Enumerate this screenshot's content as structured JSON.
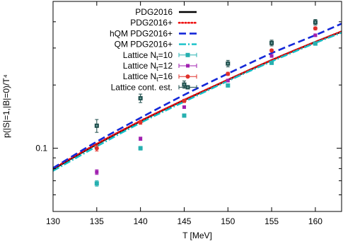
{
  "chart_data": {
    "type": "line",
    "xlabel": "T [MeV]",
    "ylabel": "p(|S|=1,|B|=0)/T⁴",
    "xlim": [
      130,
      163
    ],
    "ylim": [
      0.05,
      0.5
    ],
    "yscale": "log",
    "xticks": [
      "130",
      "135",
      "140",
      "145",
      "150",
      "155",
      "160"
    ],
    "yticks": [
      "0.1"
    ],
    "grid": false,
    "legend_position": "top-right",
    "x": [
      130,
      135,
      140,
      145,
      150,
      155,
      160,
      163
    ],
    "series": [
      {
        "name": "PDG2016",
        "color": "#000000",
        "dash": "",
        "width": 2.6,
        "values": [
          0.0795,
          0.1045,
          0.1345,
          0.1695,
          0.2115,
          0.2625,
          0.3205,
          0.359
        ]
      },
      {
        "name": "PDG2016+",
        "color": "#ee1111",
        "dash": "1.4 3",
        "width": 2.6,
        "values": [
          0.08,
          0.105,
          0.135,
          0.17,
          0.212,
          0.263,
          0.321,
          0.36
        ]
      },
      {
        "name": "hQM PDG2016+",
        "color": "#1428d8",
        "dash": "10 5",
        "width": 2.6,
        "values": [
          0.0805,
          0.1075,
          0.1395,
          0.1795,
          0.2265,
          0.2835,
          0.3455,
          0.392
        ]
      },
      {
        "name": "QM PDG2016+",
        "color": "#14c0c8",
        "dash": "10 3 2 3",
        "width": 2.4,
        "values": [
          0.078,
          0.102,
          0.132,
          0.1665,
          0.209,
          0.259,
          0.317,
          0.355
        ]
      }
    ],
    "points": [
      {
        "name": "Lattice N",
        "sub": "t",
        "suffix": "=10",
        "color": "#26b0b0",
        "marker": "square",
        "x": [
          135,
          140,
          145,
          150,
          155,
          160
        ],
        "y": [
          0.068,
          0.1,
          0.143,
          0.199,
          0.255,
          0.315
        ],
        "err": [
          0.002,
          0.002,
          0.002,
          0.003,
          0.003,
          0.004
        ]
      },
      {
        "name": "Lattice N",
        "sub": "t",
        "suffix": "=12",
        "color": "#a020b0",
        "marker": "square-small",
        "x": [
          135,
          140,
          145,
          150,
          155,
          160
        ],
        "y": [
          0.077,
          0.111,
          0.157,
          0.21,
          0.275,
          0.345
        ],
        "err": [
          0.002,
          0.002,
          0.002,
          0.003,
          0.003,
          0.004
        ]
      },
      {
        "name": "Lattice N",
        "sub": "t",
        "suffix": "=16",
        "color": "#e0302a",
        "marker": "circle",
        "x": [
          135,
          140,
          145,
          150,
          155,
          160
        ],
        "y": [
          0.1,
          0.133,
          0.168,
          0.226,
          0.292,
          0.372
        ],
        "err": [
          0.003,
          0.003,
          0.003,
          0.004,
          0.004,
          0.006
        ]
      },
      {
        "name": "Lattice cont. est.",
        "sub": "",
        "suffix": "",
        "color": "#1a4a48",
        "marker": "square-open",
        "x": [
          135,
          140,
          145,
          150,
          155,
          160
        ],
        "y": [
          0.128,
          0.173,
          0.201,
          0.253,
          0.317,
          0.398
        ],
        "err": [
          0.009,
          0.008,
          0.008,
          0.009,
          0.01,
          0.012
        ]
      }
    ]
  }
}
